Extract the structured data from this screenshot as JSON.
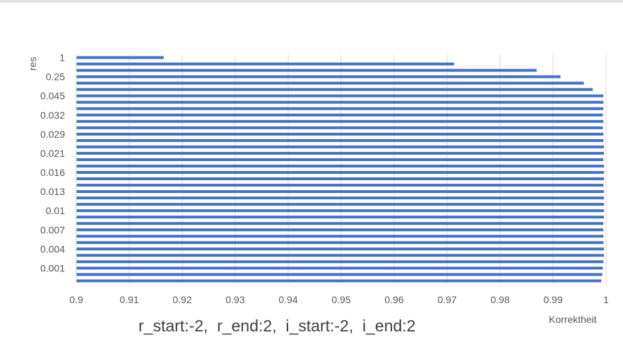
{
  "chart_data": {
    "type": "bar",
    "orientation": "horizontal",
    "subtitle": "r_start:-2,  r_end:2,  i_start:-2,  i_end:2",
    "xlabel": "Korrektheit",
    "ylabel": "res",
    "xlim": [
      0.9,
      1
    ],
    "xticks": [
      "0.9",
      "0.91",
      "0.92",
      "0.93",
      "0.94",
      "0.95",
      "0.96",
      "0.97",
      "0.98",
      "0.99",
      "1"
    ],
    "ytick_labels": [
      "1",
      "0.25",
      "0.045",
      "0.032",
      "0.029",
      "0.021",
      "0.016",
      "0.013",
      "0.01",
      "0.007",
      "0.004",
      "0.001"
    ],
    "grid": "vertical",
    "bar_color": "#4472c4",
    "series": [
      {
        "values": [
          0.9165,
          0.9713,
          0.9869,
          0.9914,
          0.9958,
          0.9975,
          0.9995,
          0.9995,
          0.9995,
          0.9994,
          0.9995,
          0.9994,
          0.9995,
          0.9995,
          0.9996,
          0.9996,
          0.9995,
          0.9996,
          0.9996,
          0.9996,
          0.9995,
          0.9996,
          0.9996,
          0.9996,
          0.9996,
          0.9996,
          0.9995,
          0.9995,
          0.9995,
          0.9995,
          0.9996,
          0.9996,
          0.9995,
          0.9994,
          0.9993,
          0.9991
        ]
      }
    ]
  }
}
